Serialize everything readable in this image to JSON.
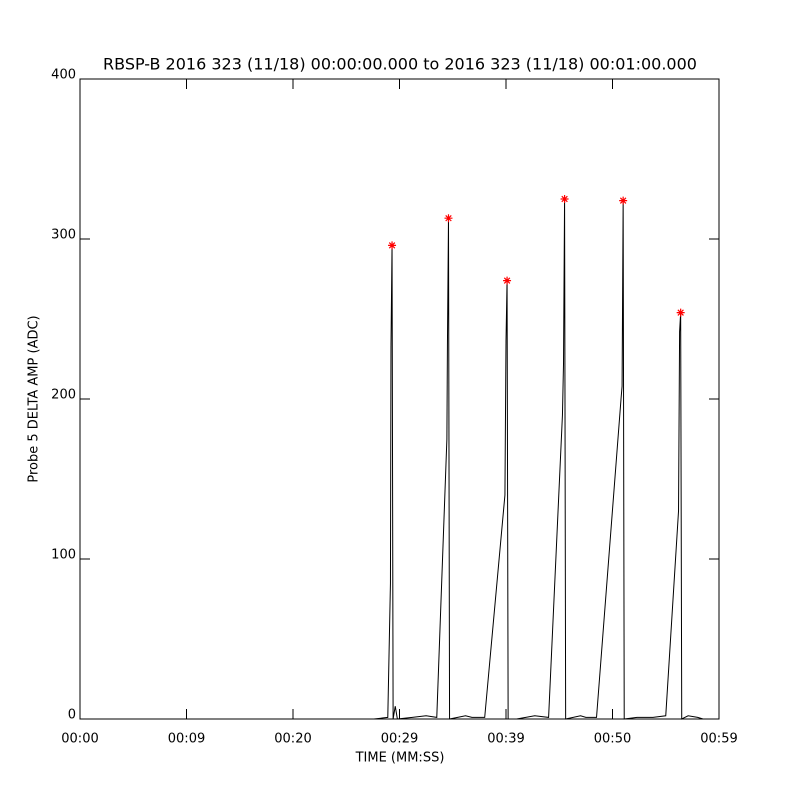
{
  "chart_data": {
    "type": "line",
    "title": "RBSP-B 2016 323 (11/18) 00:00:00.000 to 2016 323 (11/18) 00:01:00.000",
    "xlabel": "TIME (MM:SS)",
    "ylabel": "Probe 5 DELTA AMP (ADC)",
    "xlim": [
      0,
      60
    ],
    "xticks": [
      {
        "value": 0,
        "label": "00:00"
      },
      {
        "value": 10,
        "label": "00:09"
      },
      {
        "value": 20,
        "label": "00:20"
      },
      {
        "value": 30,
        "label": "00:29"
      },
      {
        "value": 40,
        "label": "00:39"
      },
      {
        "value": 50,
        "label": "00:50"
      },
      {
        "value": 60,
        "label": "00:59"
      }
    ],
    "ylim": [
      0,
      400
    ],
    "yticks": [
      0,
      100,
      200,
      300,
      400
    ],
    "series": [
      {
        "name": "signal",
        "color": "#000000",
        "x": [
          0,
          27.6,
          28.9,
          29.15,
          29.2,
          29.3,
          29.4,
          29.6,
          29.8,
          31.2,
          32.5,
          33.5,
          34.45,
          34.5,
          34.6,
          34.7,
          36.2,
          36.8,
          38.0,
          39.9,
          40.0,
          40.1,
          40.2,
          41.0,
          42.7,
          44.0,
          45.3,
          45.4,
          45.5,
          45.6,
          47.0,
          47.5,
          48.5,
          50.8,
          50.9,
          51.0,
          51.1,
          52.3,
          53.8,
          55.0,
          56.2,
          56.3,
          56.4,
          56.5,
          57.1,
          58.0,
          58.5
        ],
        "values": [
          0,
          0,
          1,
          85,
          233,
          296,
          0,
          8,
          0,
          1,
          2,
          1,
          175,
          233,
          313,
          0,
          2,
          1,
          1,
          140,
          236,
          274,
          0,
          0,
          2,
          1,
          190,
          222,
          325,
          0,
          2,
          1,
          1,
          200,
          208,
          324,
          0,
          1,
          1,
          2,
          130,
          242,
          254,
          0,
          2,
          1,
          0
        ]
      },
      {
        "name": "peaks",
        "color": "#ff0000",
        "marker": "star",
        "x": [
          29.3,
          34.6,
          40.1,
          45.5,
          51.0,
          56.4
        ],
        "values": [
          296,
          313,
          274,
          325,
          324,
          254
        ]
      }
    ]
  }
}
